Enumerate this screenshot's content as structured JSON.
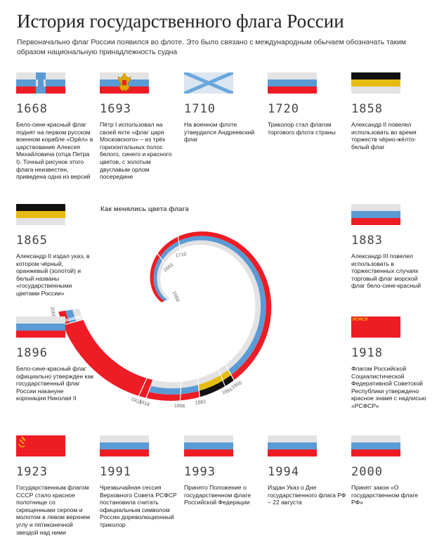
{
  "header": {
    "title": "История государственного флага России",
    "subtitle": "Первоначально флаг России появился во флоте. Это было связано с международным обычаем обозначать таким образом национальную принадлежность судна"
  },
  "colors": {
    "white": "#e3e3e3",
    "blue": "#5b9bd5",
    "red": "#ee1c25",
    "black": "#111111",
    "gold": "#e6bb12",
    "andreev_bg": "#dbe6f0",
    "andreev_cross": "#6aa7dc"
  },
  "cards": [
    {
      "year": "1668",
      "flag": "blue-cross-on-white-red",
      "desc": "Бело-сине-красный флаг поднят на первом русском военном корабле «Орёл» в царствование Алексея Михайловича (отца Петра I). Точный рисунок этого флага неизвестен, приведена одна из версий"
    },
    {
      "year": "1693",
      "flag": "tricolor-with-eagle",
      "desc": "Пётр I использовал на своей яхте «флаг царя Московского» – из трёх горизонтальных полос белого, синего и красного цветов, с золотым двуглавым орлом посередине"
    },
    {
      "year": "1710",
      "flag": "andreev-cross",
      "desc": "На военном флоте утвердился Андреевский флаг"
    },
    {
      "year": "1720",
      "flag": "tricolor",
      "desc": "Триколор стал флагом торгового флота страны"
    },
    {
      "year": "1858",
      "flag": "black-gold-white",
      "desc": "Александр II повелел использовать во время торжеств чёрно-жёлто-белый флаг"
    },
    {
      "year": "1865",
      "flag": "black-gold-white",
      "desc": "Александр II издал указ, в котором чёрный, оранжевый (золотой) и белый названы «государственными цветами России»"
    },
    {
      "year": "1883",
      "flag": "tricolor",
      "desc": "Александр III повелел использовать в торжественных случаях торговый флаг морской флаг бело-сине-красный"
    },
    {
      "year": "1896",
      "flag": "tricolor",
      "desc": "Бело-сине-красный флаг официально утвержден как государственный флаг России накануне коронации Николая II"
    },
    {
      "year": "1918",
      "flag": "rsfsr",
      "desc": "Флагом Российской Социалистической Федеративной Советской Республики утверждено красное знамя с надписью «РСФСР»",
      "flag_text": "РСФСР"
    },
    {
      "year": "1923",
      "flag": "ussr",
      "desc": "Государственным флагом СССР стало красное полотнище со скрещенными серпом и молотом в левом верхнем углу и пятиконечной звездой над ними"
    },
    {
      "year": "1991",
      "flag": "tricolor",
      "desc": "Чрезвычайная сессия Верховного Совета РСФСР постановила считать официальным символом России дореволюционный триколор"
    },
    {
      "year": "1993",
      "flag": "tricolor",
      "desc": "Принято Положение о государственном флаге Российской Федерации"
    },
    {
      "year": "1994",
      "flag": "tricolor",
      "desc": "Издан Указ о Дне государственного флага РФ – 22 августа"
    },
    {
      "year": "2000",
      "flag": "tricolor",
      "desc": "Принят закон «О государственном флаге РФ»"
    }
  ],
  "chart_data": {
    "type": "spiral-timeline",
    "title": "Как менялись цвета флага",
    "segments": [
      {
        "from": 1668,
        "to": 1858,
        "colors": [
          "white",
          "blue",
          "red"
        ]
      },
      {
        "from": 1858,
        "to": 1883,
        "colors": [
          "white",
          "gold",
          "black"
        ]
      },
      {
        "from": 1883,
        "to": 1918,
        "colors": [
          "white",
          "blue",
          "red"
        ]
      },
      {
        "from": 1918,
        "to": 1991,
        "colors": [
          "red"
        ]
      },
      {
        "from": 1991,
        "to": 2000,
        "colors": [
          "white",
          "blue",
          "red"
        ]
      }
    ],
    "tick_labels": [
      "1668",
      "1693",
      "1710",
      "1858",
      "1865",
      "1883",
      "1896",
      "1918",
      "1923",
      "1991",
      "1993",
      "1994",
      "2000"
    ]
  }
}
